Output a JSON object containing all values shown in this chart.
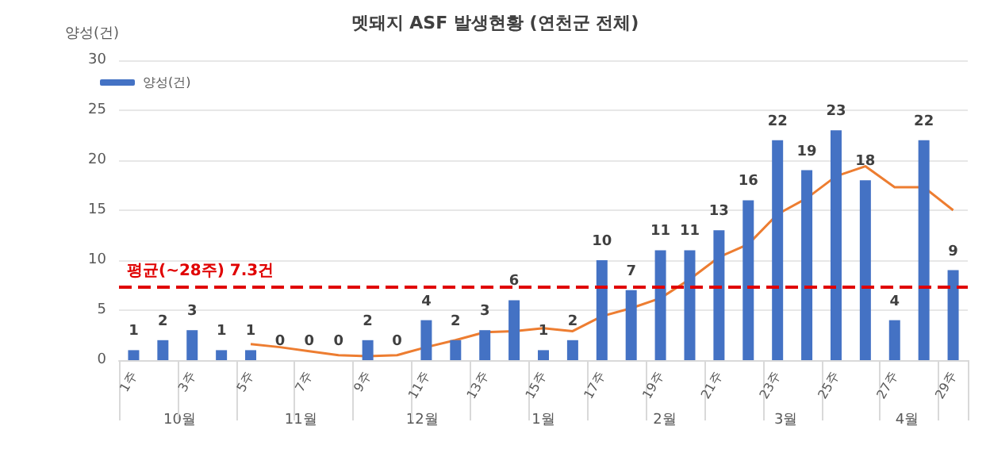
{
  "chart_data": {
    "type": "bar",
    "title": "멧돼지 ASF 발생현황 (연천군 전체)",
    "ylabel": "양성(건)",
    "categories": [
      "1주",
      null,
      "3주",
      null,
      "5주",
      null,
      "7주",
      null,
      "9주",
      null,
      "11주",
      null,
      "13주",
      null,
      "15주",
      null,
      "17주",
      null,
      "19주",
      null,
      "21주",
      null,
      "23주",
      null,
      "25주",
      null,
      "27주",
      null,
      "29주"
    ],
    "series": [
      {
        "name": "양성(건)",
        "color": "#4472c4",
        "values": [
          1,
          2,
          3,
          1,
          1,
          0,
          0,
          0,
          2,
          0,
          4,
          2,
          3,
          6,
          1,
          2,
          10,
          7,
          11,
          11,
          13,
          16,
          22,
          19,
          23,
          18,
          4,
          22,
          9
        ],
        "value_labels": [
          "1",
          "2",
          "3",
          "1",
          "1",
          "0",
          "0",
          "0",
          "2",
          "0",
          "4",
          "2",
          "3",
          "6",
          "1",
          "2",
          "10",
          "7",
          "11",
          "11",
          "13",
          "16",
          "22",
          "19",
          "23",
          "18",
          "4",
          "22",
          "9"
        ]
      },
      {
        "type": "line",
        "color": "#ed7d31",
        "values": [
          null,
          null,
          null,
          null,
          1.6,
          1.3,
          0.9,
          0.5,
          0.4,
          0.5,
          1.3,
          2.0,
          2.8,
          2.9,
          3.2,
          2.9,
          4.4,
          5.2,
          6.2,
          8.1,
          10.3,
          11.6,
          14.6,
          16.2,
          18.4,
          19.4,
          17.3,
          17.3,
          15.0
        ]
      }
    ],
    "ylim": [
      0,
      30
    ],
    "yticks": [
      0,
      5,
      10,
      15,
      20,
      25,
      30
    ],
    "grid": "y",
    "legend": "top left",
    "marker": "none",
    "ref_lines": [
      {
        "axis": "y",
        "value": 7.3,
        "label": "평균(~28주) 7.3건",
        "color": "#e00000",
        "line_style": "dashed"
      }
    ],
    "annotations": [
      "10월",
      "11월",
      "12월",
      "1월",
      "2월",
      "3월",
      "4월"
    ]
  }
}
